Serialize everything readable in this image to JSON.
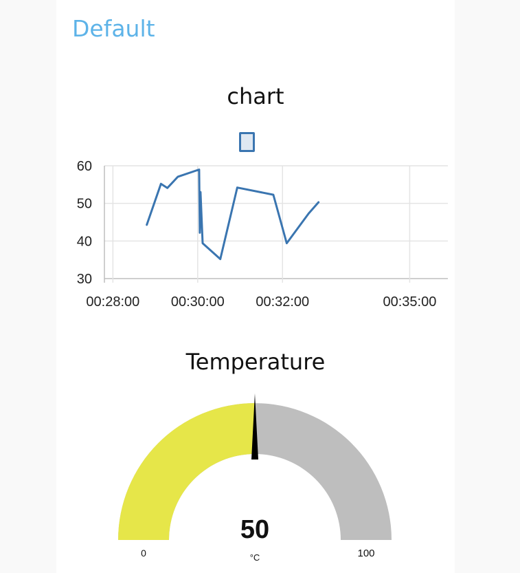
{
  "group": {
    "title": "Default"
  },
  "chart": {
    "title": "chart",
    "legend_label": "",
    "series_color": "#3a75b0"
  },
  "chart_data": {
    "type": "line",
    "title": "chart",
    "xlabel": "",
    "ylabel": "",
    "ylim": [
      30,
      60
    ],
    "xlim": [
      "00:27:48",
      "00:35:54"
    ],
    "grid": true,
    "legend_placement": "top-center",
    "y_ticks": [
      "60",
      "50",
      "40",
      "30"
    ],
    "x_ticks": [
      "00:28:00",
      "00:30:00",
      "00:32:00",
      "00:35:00"
    ],
    "series": [
      {
        "values": [
          {
            "x": "00:28:48",
            "y": 44.3
          },
          {
            "x": "00:29:08",
            "y": 55.2
          },
          {
            "x": "00:29:17",
            "y": 54.1
          },
          {
            "x": "00:29:32",
            "y": 57.1
          },
          {
            "x": "00:30:02",
            "y": 59.0
          },
          {
            "x": "00:30:03",
            "y": 42.2
          },
          {
            "x": "00:30:04",
            "y": 53.0
          },
          {
            "x": "00:30:07",
            "y": 39.4
          },
          {
            "x": "00:30:32",
            "y": 35.2
          },
          {
            "x": "00:30:56",
            "y": 54.2
          },
          {
            "x": "00:31:47",
            "y": 52.3
          },
          {
            "x": "00:32:06",
            "y": 39.4
          },
          {
            "x": "00:32:37",
            "y": 47.3
          },
          {
            "x": "00:32:51",
            "y": 50.3
          }
        ]
      }
    ]
  },
  "gauge": {
    "title": "Temperature",
    "value": 50,
    "value_text": "50",
    "units": "°C",
    "min": 0,
    "max": 100,
    "min_label": "0",
    "max_label": "100",
    "fill_color": "#e6e649",
    "track_color": "#bebebe",
    "needle_color": "#000000"
  }
}
